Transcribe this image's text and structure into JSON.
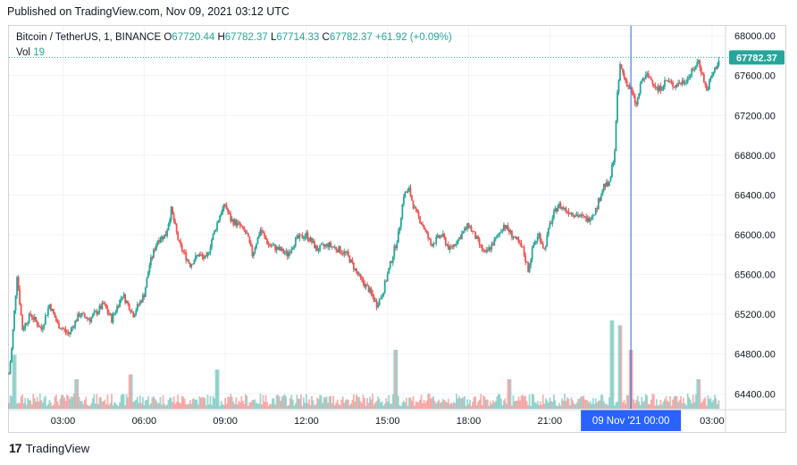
{
  "header": {
    "published_text": "Published on TradingView.com, Nov 09, 2021 03:12 UTC"
  },
  "legend": {
    "symbol": "Bitcoin / TetherUS, 1, BINANCE",
    "open_label": "O",
    "open": "67720.44",
    "high_label": "H",
    "high": "67782.37",
    "low_label": "L",
    "low": "67714.33",
    "close_label": "C",
    "close": "67782.37",
    "change": "+61.92 (+0.09%)",
    "vol_label": "Vol",
    "vol": "19"
  },
  "footer": {
    "brand": "TradingView"
  },
  "colors": {
    "up": "#26a69a",
    "down": "#ef5350",
    "crosshair": "#2962ff",
    "text": "#131722",
    "grid": "#f0f3fa"
  },
  "chart_data": {
    "type": "candlestick",
    "title": "Bitcoin / TetherUS, 1, BINANCE",
    "y_ticks": [
      "68000.00",
      "67600.00",
      "67200.00",
      "66800.00",
      "66400.00",
      "66000.00",
      "65600.00",
      "65200.00",
      "64800.00",
      "64400.00"
    ],
    "y_range": [
      64250,
      68100
    ],
    "x_ticks": [
      "03:00",
      "06:00",
      "09:00",
      "12:00",
      "15:00",
      "18:00",
      "21:00",
      "09 Nov '21   00:00",
      "03:00"
    ],
    "time_range_hours": [
      1.0,
      27.3
    ],
    "crosshair_time_hours": 24.0,
    "crosshair_label": "09 Nov '21   00:00",
    "last_price": 67782.37,
    "last_price_label": "67782.37",
    "grid": true,
    "price_path": [
      [
        1.0,
        64600
      ],
      [
        1.1,
        64850
      ],
      [
        1.3,
        65600
      ],
      [
        1.5,
        65050
      ],
      [
        1.8,
        65200
      ],
      [
        2.2,
        65050
      ],
      [
        2.5,
        65300
      ],
      [
        2.8,
        65100
      ],
      [
        3.2,
        65000
      ],
      [
        3.6,
        65200
      ],
      [
        4.0,
        65150
      ],
      [
        4.5,
        65300
      ],
      [
        4.8,
        65150
      ],
      [
        5.2,
        65400
      ],
      [
        5.6,
        65200
      ],
      [
        6.0,
        65400
      ],
      [
        6.2,
        65700
      ],
      [
        6.5,
        65950
      ],
      [
        6.8,
        66000
      ],
      [
        7.0,
        66250
      ],
      [
        7.3,
        65900
      ],
      [
        7.7,
        65700
      ],
      [
        8.0,
        65800
      ],
      [
        8.3,
        65750
      ],
      [
        8.5,
        65950
      ],
      [
        8.8,
        66200
      ],
      [
        9.0,
        66300
      ],
      [
        9.2,
        66150
      ],
      [
        9.5,
        66100
      ],
      [
        9.8,
        66000
      ],
      [
        10.0,
        65800
      ],
      [
        10.3,
        66050
      ],
      [
        10.6,
        65900
      ],
      [
        11.0,
        65850
      ],
      [
        11.3,
        65800
      ],
      [
        11.6,
        65950
      ],
      [
        12.0,
        66000
      ],
      [
        12.4,
        65850
      ],
      [
        12.8,
        65900
      ],
      [
        13.2,
        65850
      ],
      [
        13.5,
        65800
      ],
      [
        13.8,
        65650
      ],
      [
        14.0,
        65550
      ],
      [
        14.3,
        65450
      ],
      [
        14.6,
        65300
      ],
      [
        14.8,
        65400
      ],
      [
        15.0,
        65600
      ],
      [
        15.2,
        65800
      ],
      [
        15.4,
        66000
      ],
      [
        15.6,
        66400
      ],
      [
        15.8,
        66450
      ],
      [
        16.0,
        66250
      ],
      [
        16.3,
        66100
      ],
      [
        16.6,
        65900
      ],
      [
        17.0,
        66000
      ],
      [
        17.3,
        65850
      ],
      [
        17.6,
        65950
      ],
      [
        18.0,
        66100
      ],
      [
        18.3,
        65950
      ],
      [
        18.6,
        65800
      ],
      [
        19.0,
        65950
      ],
      [
        19.3,
        66100
      ],
      [
        19.6,
        66000
      ],
      [
        20.0,
        65850
      ],
      [
        20.2,
        65650
      ],
      [
        20.4,
        65900
      ],
      [
        20.6,
        66000
      ],
      [
        20.8,
        65850
      ],
      [
        21.0,
        66100
      ],
      [
        21.3,
        66300
      ],
      [
        21.6,
        66250
      ],
      [
        22.0,
        66200
      ],
      [
        22.4,
        66150
      ],
      [
        22.7,
        66250
      ],
      [
        23.0,
        66500
      ],
      [
        23.2,
        66500
      ],
      [
        23.4,
        66850
      ],
      [
        23.5,
        67400
      ],
      [
        23.6,
        67700
      ],
      [
        23.8,
        67550
      ],
      [
        24.0,
        67450
      ],
      [
        24.2,
        67300
      ],
      [
        24.4,
        67550
      ],
      [
        24.6,
        67600
      ],
      [
        24.8,
        67550
      ],
      [
        25.0,
        67450
      ],
      [
        25.3,
        67550
      ],
      [
        25.6,
        67500
      ],
      [
        26.0,
        67550
      ],
      [
        26.3,
        67650
      ],
      [
        26.5,
        67750
      ],
      [
        26.8,
        67450
      ],
      [
        27.0,
        67600
      ],
      [
        27.3,
        67782.37
      ]
    ],
    "volume_spikes": [
      [
        1.2,
        0.55
      ],
      [
        3.5,
        0.3
      ],
      [
        5.5,
        0.35
      ],
      [
        8.7,
        0.4
      ],
      [
        15.3,
        0.6
      ],
      [
        19.5,
        0.3
      ],
      [
        23.3,
        0.9
      ],
      [
        23.6,
        0.85
      ],
      [
        24.0,
        0.6
      ],
      [
        26.5,
        0.3
      ]
    ]
  }
}
